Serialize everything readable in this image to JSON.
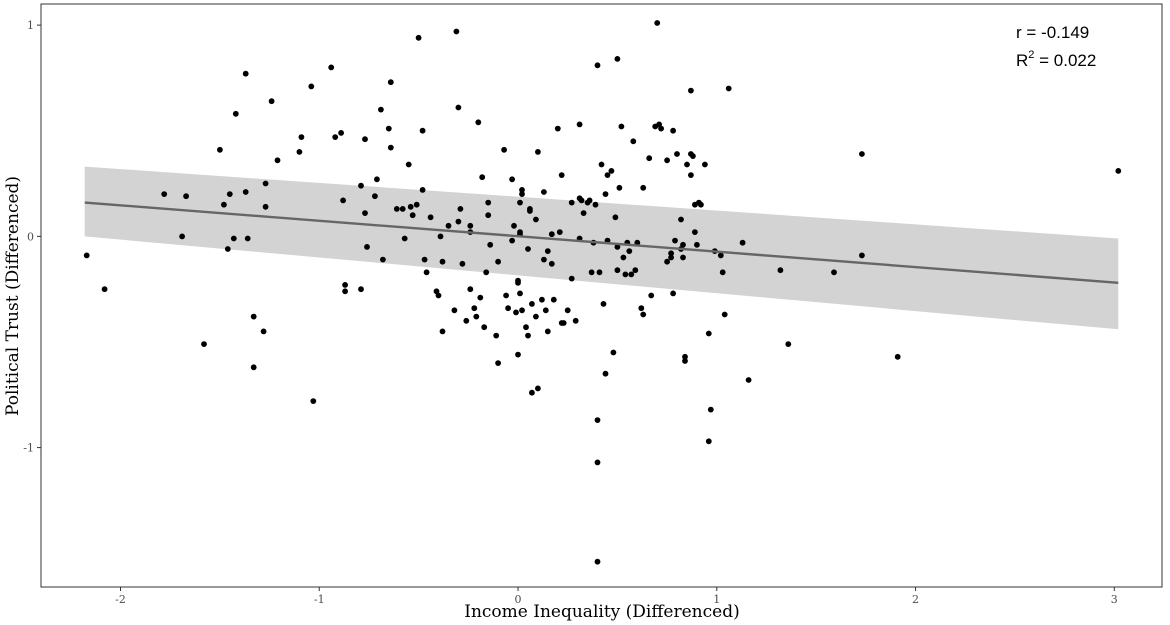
{
  "chart_data": {
    "type": "scatter",
    "title": "",
    "xlabel": "Income Inequality (Differenced)",
    "ylabel": "Political Trust (Differenced)",
    "xlim": [
      -2.4,
      3.24
    ],
    "ylim": [
      -1.66,
      1.1
    ],
    "xticks": [
      -2,
      -1,
      0,
      1,
      2,
      3
    ],
    "xtick_labels": [
      "-2",
      "-1",
      "0",
      "1",
      "2",
      "3"
    ],
    "yticks": [
      -1,
      0,
      1
    ],
    "ytick_labels": [
      "-1",
      "0",
      "1"
    ],
    "grid": false,
    "annotation": {
      "r_label": "r = -0.149",
      "r2_prefix": "R",
      "r2_sup": "2",
      "r2_value": " = 0.022"
    },
    "regression": {
      "x": [
        -2.18,
        3.02
      ],
      "y": [
        0.16,
        -0.22
      ],
      "ci_lower": [
        0.0,
        -0.44
      ],
      "ci_upper": [
        0.33,
        -0.01
      ],
      "line_color": "#666666",
      "band_color": "#d3d3d3"
    },
    "point_color": "#000000",
    "points": [
      [
        -2.17,
        -0.09
      ],
      [
        -2.08,
        -0.25
      ],
      [
        -1.78,
        0.2
      ],
      [
        -1.69,
        0.0
      ],
      [
        -1.67,
        0.19
      ],
      [
        -1.58,
        -0.51
      ],
      [
        -1.5,
        0.41
      ],
      [
        -1.48,
        0.15
      ],
      [
        -1.46,
        -0.06
      ],
      [
        -1.45,
        0.2
      ],
      [
        -1.43,
        -0.01
      ],
      [
        -1.42,
        0.58
      ],
      [
        -1.37,
        0.21
      ],
      [
        -1.36,
        -0.01
      ],
      [
        -1.37,
        0.77
      ],
      [
        -1.33,
        -0.38
      ],
      [
        -1.33,
        -0.62
      ],
      [
        -1.28,
        -0.45
      ],
      [
        -1.27,
        0.25
      ],
      [
        -1.27,
        0.14
      ],
      [
        -1.24,
        0.64
      ],
      [
        -1.21,
        0.36
      ],
      [
        -1.1,
        0.4
      ],
      [
        -1.09,
        0.47
      ],
      [
        -1.04,
        0.71
      ],
      [
        -1.03,
        -0.78
      ],
      [
        -0.94,
        0.8
      ],
      [
        -0.92,
        0.47
      ],
      [
        -0.89,
        0.49
      ],
      [
        -0.88,
        0.17
      ],
      [
        -0.87,
        -0.23
      ],
      [
        -0.87,
        -0.26
      ],
      [
        -0.79,
        0.24
      ],
      [
        -0.79,
        -0.25
      ],
      [
        -0.77,
        0.11
      ],
      [
        -0.77,
        0.46
      ],
      [
        -0.76,
        -0.05
      ],
      [
        -0.72,
        0.19
      ],
      [
        -0.71,
        0.27
      ],
      [
        -0.69,
        0.6
      ],
      [
        -0.68,
        -0.11
      ],
      [
        -0.65,
        0.51
      ],
      [
        -0.64,
        0.73
      ],
      [
        -0.64,
        0.42
      ],
      [
        -0.61,
        0.13
      ],
      [
        -0.58,
        0.13
      ],
      [
        -0.57,
        -0.01
      ],
      [
        -0.55,
        0.34
      ],
      [
        -0.54,
        0.14
      ],
      [
        -0.51,
        0.15
      ],
      [
        -0.5,
        0.94
      ],
      [
        -0.48,
        0.22
      ],
      [
        -0.48,
        0.5
      ],
      [
        -0.47,
        -0.11
      ],
      [
        -0.46,
        -0.17
      ],
      [
        -0.44,
        0.09
      ],
      [
        -0.41,
        -0.26
      ],
      [
        -0.4,
        -0.28
      ],
      [
        -0.39,
        0.0
      ],
      [
        -0.38,
        -0.12
      ],
      [
        -0.38,
        -0.45
      ],
      [
        -0.35,
        0.05
      ],
      [
        -0.32,
        -0.35
      ],
      [
        -0.31,
        0.97
      ],
      [
        -0.3,
        0.61
      ],
      [
        -0.3,
        0.07
      ],
      [
        -0.29,
        0.13
      ],
      [
        -0.28,
        -0.13
      ],
      [
        -0.26,
        -0.4
      ],
      [
        -0.24,
        -0.25
      ],
      [
        -0.24,
        0.02
      ],
      [
        -0.22,
        -0.34
      ],
      [
        -0.21,
        -0.38
      ],
      [
        -0.2,
        0.54
      ],
      [
        -0.19,
        -0.29
      ],
      [
        -0.18,
        0.28
      ],
      [
        -0.17,
        -0.43
      ],
      [
        -0.16,
        -0.17
      ],
      [
        -0.15,
        0.16
      ],
      [
        -0.15,
        0.1
      ],
      [
        -0.14,
        -0.04
      ],
      [
        -0.11,
        -0.47
      ],
      [
        -0.1,
        -0.12
      ],
      [
        -0.1,
        -0.6
      ],
      [
        -0.07,
        0.41
      ],
      [
        -0.06,
        -0.28
      ],
      [
        -0.05,
        -0.34
      ],
      [
        -0.03,
        0.27
      ],
      [
        -0.03,
        -0.02
      ],
      [
        -0.02,
        0.05
      ],
      [
        -0.01,
        -0.36
      ],
      [
        0.0,
        -0.56
      ],
      [
        0.01,
        0.16
      ],
      [
        0.02,
        0.22
      ],
      [
        0.02,
        0.2
      ],
      [
        0.01,
        0.02
      ],
      [
        0.01,
        0.01
      ],
      [
        0.0,
        -0.21
      ],
      [
        0.0,
        -0.22
      ],
      [
        0.01,
        -0.27
      ],
      [
        0.02,
        -0.35
      ],
      [
        0.04,
        -0.43
      ],
      [
        0.05,
        -0.47
      ],
      [
        0.05,
        -0.06
      ],
      [
        0.06,
        0.13
      ],
      [
        0.06,
        0.12
      ],
      [
        0.07,
        -0.32
      ],
      [
        0.07,
        -0.74
      ],
      [
        0.09,
        0.08
      ],
      [
        0.09,
        -0.38
      ],
      [
        0.1,
        0.4
      ],
      [
        0.1,
        -0.72
      ],
      [
        0.12,
        -0.3
      ],
      [
        0.13,
        -0.11
      ],
      [
        0.13,
        0.21
      ],
      [
        0.14,
        -0.35
      ],
      [
        0.15,
        -0.45
      ],
      [
        0.15,
        -0.07
      ],
      [
        0.17,
        0.01
      ],
      [
        0.17,
        -0.13
      ],
      [
        0.18,
        -0.3
      ],
      [
        0.2,
        0.51
      ],
      [
        0.21,
        0.02
      ],
      [
        0.22,
        -0.41
      ],
      [
        0.22,
        0.29
      ],
      [
        0.23,
        -0.41
      ],
      [
        0.25,
        -0.35
      ],
      [
        0.27,
        0.16
      ],
      [
        0.29,
        -0.4
      ],
      [
        0.31,
        0.53
      ],
      [
        0.31,
        -0.01
      ],
      [
        0.31,
        0.18
      ],
      [
        0.32,
        0.17
      ],
      [
        0.33,
        0.11
      ],
      [
        0.35,
        0.16
      ],
      [
        0.36,
        0.17
      ],
      [
        0.37,
        -0.17
      ],
      [
        0.38,
        -0.03
      ],
      [
        0.39,
        0.15
      ],
      [
        0.4,
        0.81
      ],
      [
        0.4,
        -0.87
      ],
      [
        0.4,
        -1.07
      ],
      [
        0.4,
        -1.54
      ],
      [
        0.41,
        -0.17
      ],
      [
        0.42,
        0.34
      ],
      [
        0.43,
        -0.32
      ],
      [
        0.44,
        -0.65
      ],
      [
        0.44,
        0.2
      ],
      [
        0.45,
        0.29
      ],
      [
        0.45,
        -0.02
      ],
      [
        0.47,
        0.31
      ],
      [
        0.48,
        -0.55
      ],
      [
        0.49,
        0.09
      ],
      [
        0.5,
        0.84
      ],
      [
        0.5,
        -0.16
      ],
      [
        0.51,
        0.23
      ],
      [
        0.52,
        0.52
      ],
      [
        0.53,
        -0.1
      ],
      [
        0.54,
        -0.18
      ],
      [
        0.55,
        -0.03
      ],
      [
        0.56,
        -0.07
      ],
      [
        0.57,
        -0.18
      ],
      [
        0.58,
        0.45
      ],
      [
        0.59,
        -0.16
      ],
      [
        0.62,
        -0.34
      ],
      [
        0.63,
        -0.37
      ],
      [
        0.63,
        0.23
      ],
      [
        0.66,
        0.37
      ],
      [
        0.67,
        -0.28
      ],
      [
        0.69,
        0.52
      ],
      [
        0.7,
        1.01
      ],
      [
        0.71,
        0.53
      ],
      [
        0.72,
        0.51
      ],
      [
        0.75,
        -0.12
      ],
      [
        0.75,
        0.36
      ],
      [
        0.77,
        -0.1
      ],
      [
        0.77,
        -0.08
      ],
      [
        0.78,
        0.5
      ],
      [
        0.79,
        -0.02
      ],
      [
        0.8,
        0.39
      ],
      [
        0.82,
        0.08
      ],
      [
        0.82,
        -0.06
      ],
      [
        0.83,
        -0.04
      ],
      [
        0.83,
        -0.1
      ],
      [
        0.84,
        -0.57
      ],
      [
        0.84,
        -0.59
      ],
      [
        0.85,
        0.34
      ],
      [
        0.87,
        0.69
      ],
      [
        0.87,
        0.29
      ],
      [
        0.87,
        0.39
      ],
      [
        0.88,
        0.38
      ],
      [
        0.89,
        0.15
      ],
      [
        0.89,
        0.02
      ],
      [
        0.9,
        -0.04
      ],
      [
        0.91,
        0.16
      ],
      [
        0.92,
        0.15
      ],
      [
        0.94,
        0.34
      ],
      [
        0.96,
        -0.46
      ],
      [
        0.96,
        -0.97
      ],
      [
        0.97,
        -0.82
      ],
      [
        0.99,
        -0.07
      ],
      [
        1.02,
        -0.09
      ],
      [
        1.03,
        -0.17
      ],
      [
        1.04,
        -0.37
      ],
      [
        1.06,
        0.7
      ],
      [
        1.13,
        -0.03
      ],
      [
        1.16,
        -0.68
      ],
      [
        1.32,
        -0.16
      ],
      [
        1.36,
        -0.51
      ],
      [
        1.59,
        -0.17
      ],
      [
        1.73,
        0.39
      ],
      [
        1.73,
        -0.09
      ],
      [
        1.91,
        -0.57
      ],
      [
        3.02,
        0.31
      ],
      [
        -0.24,
        0.05
      ],
      [
        0.6,
        -0.03
      ],
      [
        0.78,
        -0.27
      ],
      [
        -0.53,
        0.1
      ],
      [
        0.27,
        -0.2
      ],
      [
        0.5,
        -0.05
      ]
    ]
  }
}
